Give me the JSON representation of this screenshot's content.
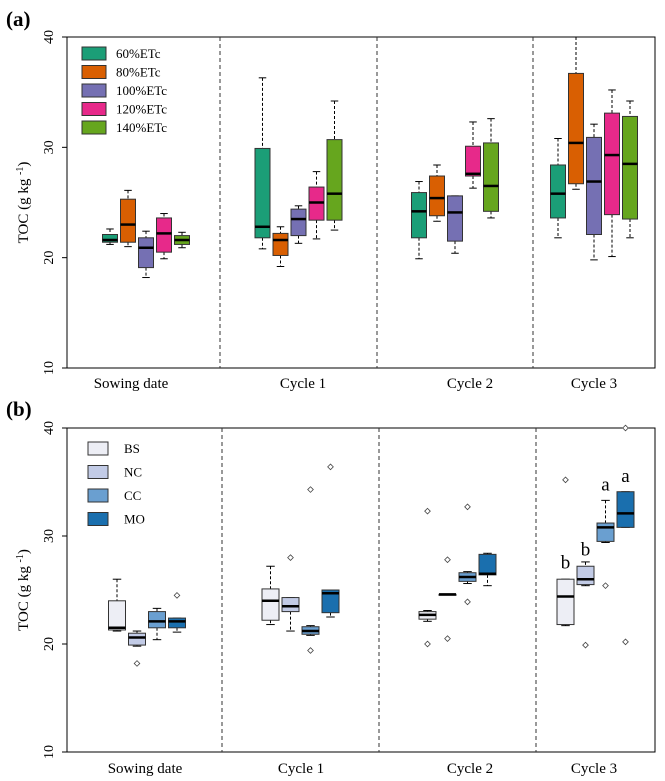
{
  "chart_data": [
    {
      "panel": "(a)",
      "type": "box",
      "ylabel": "TOC (g kg",
      "ylabel_sup": "-1",
      "ylabel_end": ")",
      "ylim": [
        10,
        40
      ],
      "yticks": [
        10,
        20,
        30,
        40
      ],
      "categories": [
        "Sowing date",
        "Cycle 1",
        "Cycle 2",
        "Cycle 3"
      ],
      "legend": [
        {
          "name": "60%ETc",
          "color": "#1b9e77"
        },
        {
          "name": "80%ETc",
          "color": "#d95f02"
        },
        {
          "name": "100%ETc",
          "color": "#7570b3"
        },
        {
          "name": "120%ETc",
          "color": "#e7298a"
        },
        {
          "name": "140%ETc",
          "color": "#66a61e"
        }
      ],
      "series": [
        {
          "name": "60%ETc",
          "boxes": [
            {
              "min": 21.2,
              "q1": 21.4,
              "median": 21.6,
              "q3": 22.1,
              "max": 22.6
            },
            {
              "min": 20.8,
              "q1": 21.8,
              "median": 22.8,
              "q3": 29.9,
              "max": 36.3
            },
            {
              "min": 19.9,
              "q1": 21.8,
              "median": 24.2,
              "q3": 25.9,
              "max": 26.9
            },
            {
              "min": 21.8,
              "q1": 23.6,
              "median": 25.8,
              "q3": 28.4,
              "max": 30.8
            }
          ]
        },
        {
          "name": "80%ETc",
          "boxes": [
            {
              "min": 21.0,
              "q1": 21.4,
              "median": 23.0,
              "q3": 25.3,
              "max": 26.1
            },
            {
              "min": 19.2,
              "q1": 20.2,
              "median": 21.6,
              "q3": 22.2,
              "max": 22.8
            },
            {
              "min": 23.3,
              "q1": 23.8,
              "median": 25.4,
              "q3": 27.4,
              "max": 28.4
            },
            {
              "min": 26.2,
              "q1": 26.7,
              "median": 30.4,
              "q3": 36.7,
              "max": 40.0
            }
          ]
        },
        {
          "name": "100%ETc",
          "boxes": [
            {
              "min": 18.2,
              "q1": 19.1,
              "median": 20.9,
              "q3": 21.8,
              "max": 22.4
            },
            {
              "min": 21.3,
              "q1": 22.0,
              "median": 23.5,
              "q3": 24.4,
              "max": 24.7
            },
            {
              "min": 20.4,
              "q1": 21.5,
              "median": 24.1,
              "q3": 25.6,
              "max": 25.6
            },
            {
              "min": 19.8,
              "q1": 22.1,
              "median": 26.9,
              "q3": 30.9,
              "max": 32.1
            }
          ]
        },
        {
          "name": "120%ETc",
          "boxes": [
            {
              "min": 19.9,
              "q1": 20.5,
              "median": 22.2,
              "q3": 23.6,
              "max": 24.0
            },
            {
              "min": 21.7,
              "q1": 23.4,
              "median": 25.0,
              "q3": 26.4,
              "max": 27.8
            },
            {
              "min": 26.3,
              "q1": 27.4,
              "median": 27.6,
              "q3": 30.1,
              "max": 32.3
            },
            {
              "min": 20.1,
              "q1": 23.9,
              "median": 29.3,
              "q3": 33.1,
              "max": 35.2
            }
          ]
        },
        {
          "name": "140%ETc",
          "boxes": [
            {
              "min": 20.9,
              "q1": 21.2,
              "median": 21.6,
              "q3": 22.0,
              "max": 22.3
            },
            {
              "min": 22.5,
              "q1": 23.4,
              "median": 25.8,
              "q3": 30.7,
              "max": 34.2
            },
            {
              "min": 23.6,
              "q1": 24.2,
              "median": 26.5,
              "q3": 30.4,
              "max": 32.6
            },
            {
              "min": 21.8,
              "q1": 23.5,
              "median": 28.5,
              "q3": 32.8,
              "max": 34.2
            }
          ]
        }
      ]
    },
    {
      "panel": "(b)",
      "type": "box",
      "ylabel": "TOC (g kg",
      "ylabel_sup": "-1",
      "ylabel_end": ")",
      "ylim": [
        10,
        40
      ],
      "yticks": [
        10,
        20,
        30,
        40
      ],
      "categories": [
        "Sowing date",
        "Cycle 1",
        "Cycle 2",
        "Cycle 3"
      ],
      "legend": [
        {
          "name": "BS",
          "color": "#edeef5"
        },
        {
          "name": "NC",
          "color": "#c2cbe6"
        },
        {
          "name": "CC",
          "color": "#6a9fd0"
        },
        {
          "name": "MO",
          "color": "#1a6fae"
        }
      ],
      "series": [
        {
          "name": "BS",
          "boxes": [
            {
              "min": 21.2,
              "q1": 21.3,
              "median": 21.5,
              "q3": 24.0,
              "max": 26.0,
              "outliers": []
            },
            {
              "min": 21.8,
              "q1": 22.2,
              "median": 24.0,
              "q3": 25.1,
              "max": 27.2,
              "outliers": []
            },
            {
              "min": 22.1,
              "q1": 22.3,
              "median": 22.7,
              "q3": 23.0,
              "max": 23.1,
              "outliers": [
                32.3,
                20.0
              ]
            },
            {
              "min": 21.7,
              "q1": 21.8,
              "median": 24.4,
              "q3": 26.0,
              "max": 26.0,
              "outliers": [
                35.2
              ]
            }
          ]
        },
        {
          "name": "NC",
          "boxes": [
            {
              "min": 19.8,
              "q1": 19.9,
              "median": 20.6,
              "q3": 21.0,
              "max": 21.2,
              "outliers": [
                18.2
              ]
            },
            {
              "min": 21.2,
              "q1": 23.0,
              "median": 23.5,
              "q3": 24.3,
              "max": 24.3,
              "outliers": [
                28.0
              ]
            },
            {
              "min": 24.6,
              "q1": 24.6,
              "median": 24.6,
              "q3": 24.6,
              "max": 24.6,
              "outliers": [
                27.8,
                20.5
              ]
            },
            {
              "min": 25.4,
              "q1": 25.5,
              "median": 26.0,
              "q3": 27.2,
              "max": 27.6,
              "outliers": [
                19.9
              ]
            }
          ]
        },
        {
          "name": "CC",
          "boxes": [
            {
              "min": 20.4,
              "q1": 21.5,
              "median": 22.1,
              "q3": 23.0,
              "max": 23.3,
              "outliers": []
            },
            {
              "min": 20.8,
              "q1": 20.9,
              "median": 21.2,
              "q3": 21.6,
              "max": 21.7,
              "outliers": [
                34.3,
                19.4
              ]
            },
            {
              "min": 25.6,
              "q1": 25.8,
              "median": 26.2,
              "q3": 26.6,
              "max": 26.7,
              "outliers": [
                32.7,
                23.9
              ]
            },
            {
              "min": 29.4,
              "q1": 29.5,
              "median": 30.8,
              "q3": 31.2,
              "max": 33.3,
              "outliers": [
                25.4
              ]
            }
          ]
        },
        {
          "name": "MO",
          "boxes": [
            {
              "min": 21.1,
              "q1": 21.5,
              "median": 22.1,
              "q3": 22.4,
              "max": 22.4,
              "outliers": [
                24.5
              ]
            },
            {
              "min": 22.5,
              "q1": 22.9,
              "median": 24.7,
              "q3": 25.0,
              "max": 25.0,
              "outliers": [
                36.4
              ]
            },
            {
              "min": 25.4,
              "q1": 26.4,
              "median": 26.5,
              "q3": 28.3,
              "max": 28.4,
              "outliers": []
            },
            {
              "min": 30.8,
              "q1": 30.8,
              "median": 32.1,
              "q3": 34.1,
              "max": 34.1,
              "outliers": [
                40.0,
                20.2
              ]
            }
          ]
        }
      ],
      "annotations": [
        {
          "text": "b",
          "category": "Cycle 3",
          "series": "BS",
          "y": 27.0
        },
        {
          "text": "b",
          "category": "Cycle 3",
          "series": "NC",
          "y": 28.2
        },
        {
          "text": "a",
          "category": "Cycle 3",
          "series": "CC",
          "y": 34.2
        },
        {
          "text": "a",
          "category": "Cycle 3",
          "series": "MO",
          "y": 35.0
        }
      ]
    }
  ]
}
